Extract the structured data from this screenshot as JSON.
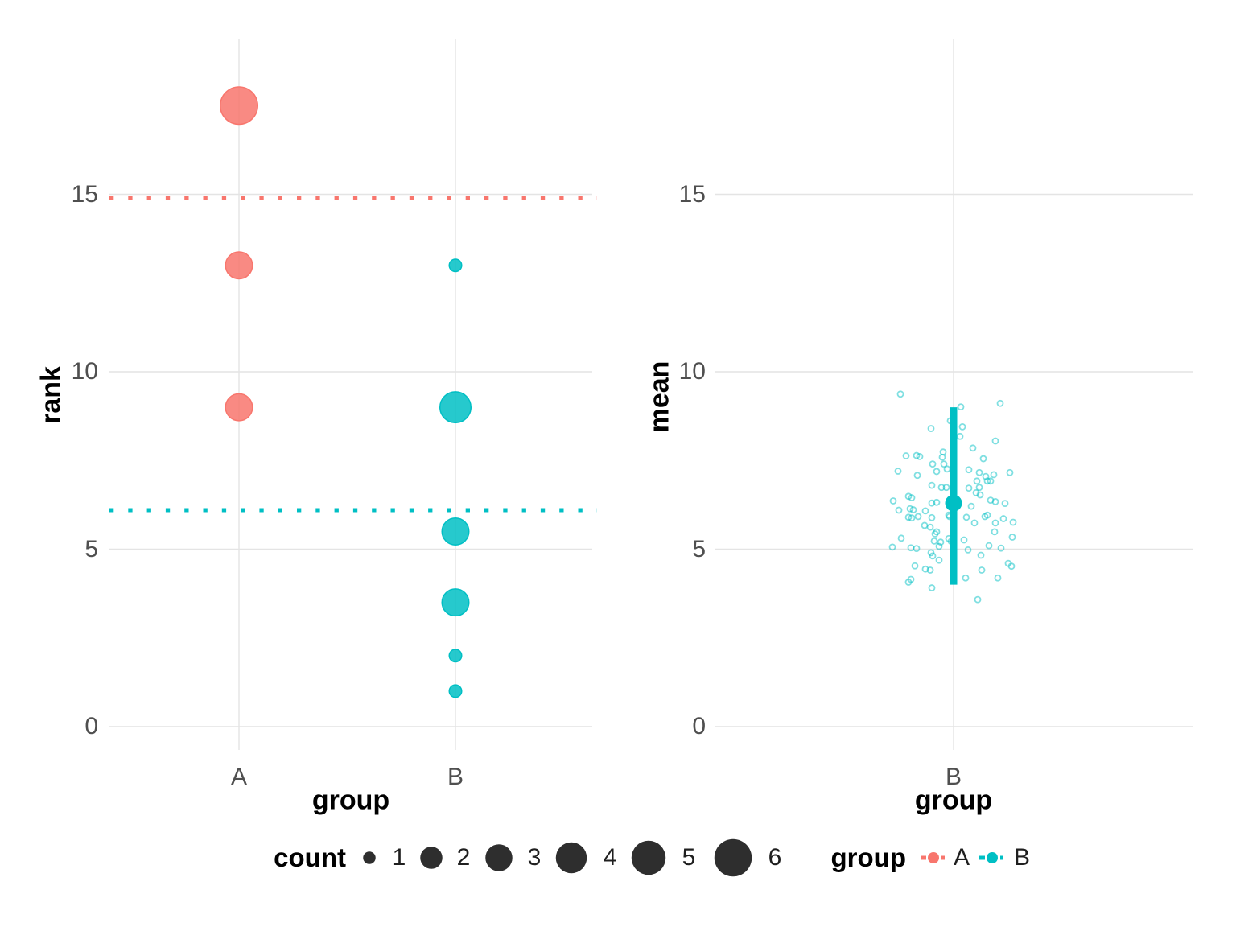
{
  "colors": {
    "group_a": "#F8766D",
    "group_b": "#00BFC4",
    "legend_key_dark": "#2E2E2E",
    "gridline": "#E4E4E4",
    "tick_text": "#4f4f4f",
    "title_text": "#000000"
  },
  "chart_data": [
    {
      "type": "bubble",
      "panel": "left",
      "xlabel": "group",
      "ylabel": "rank",
      "x_categories": [
        "A",
        "B"
      ],
      "y_ticks": [
        0,
        5,
        10,
        15
      ],
      "ylim": [
        -0.6,
        19.3
      ],
      "grid": "major-only",
      "points": [
        {
          "group": "A",
          "rank": 17.5,
          "count": 6
        },
        {
          "group": "A",
          "rank": 13,
          "count": 3
        },
        {
          "group": "A",
          "rank": 9,
          "count": 3
        },
        {
          "group": "B",
          "rank": 13,
          "count": 1
        },
        {
          "group": "B",
          "rank": 9,
          "count": 4
        },
        {
          "group": "B",
          "rank": 5.5,
          "count": 3
        },
        {
          "group": "B",
          "rank": 3.5,
          "count": 3
        },
        {
          "group": "B",
          "rank": 2,
          "count": 1
        },
        {
          "group": "B",
          "rank": 1,
          "count": 1
        }
      ],
      "hlines": [
        {
          "group": "A",
          "value": 14.9,
          "style": "dotted"
        },
        {
          "group": "B",
          "value": 6.1,
          "style": "dotted"
        }
      ]
    },
    {
      "type": "scatter-pointrange",
      "panel": "right",
      "xlabel": "group",
      "ylabel": "mean",
      "x_categories": [
        "B"
      ],
      "y_ticks": [
        0,
        5,
        10,
        15
      ],
      "ylim": [
        -0.6,
        19.3
      ],
      "grid": "major-only",
      "pointrange": {
        "group": "B",
        "mid": 6.3,
        "ymin": 4.0,
        "ymax": 9.0
      },
      "jitter_points_note": "pairs of [x-offset-px-from-category-center, mean-value]",
      "jitter_points": [
        [
          -66,
          9.37
        ],
        [
          9,
          9.01
        ],
        [
          58,
          9.11
        ],
        [
          -4,
          8.62
        ],
        [
          -28,
          8.4
        ],
        [
          8,
          8.18
        ],
        [
          52,
          8.05
        ],
        [
          11,
          8.45
        ],
        [
          37,
          7.55
        ],
        [
          24,
          7.85
        ],
        [
          -59,
          7.63
        ],
        [
          -46,
          7.64
        ],
        [
          -42,
          7.61
        ],
        [
          -14,
          7.59
        ],
        [
          -12,
          7.4
        ],
        [
          -21,
          7.19
        ],
        [
          -69,
          7.2
        ],
        [
          -8,
          7.26
        ],
        [
          19,
          7.24
        ],
        [
          32,
          7.16
        ],
        [
          -45,
          7.08
        ],
        [
          50,
          7.1
        ],
        [
          70,
          7.16
        ],
        [
          29,
          6.92
        ],
        [
          42,
          6.92
        ],
        [
          46,
          6.92
        ],
        [
          -27,
          6.8
        ],
        [
          -15,
          6.74
        ],
        [
          -9,
          6.74
        ],
        [
          19,
          6.72
        ],
        [
          32,
          6.74
        ],
        [
          28,
          6.59
        ],
        [
          33,
          6.53
        ],
        [
          -21,
          6.32
        ],
        [
          -27,
          6.3
        ],
        [
          -75,
          6.36
        ],
        [
          -56,
          6.49
        ],
        [
          -52,
          6.45
        ],
        [
          22,
          6.21
        ],
        [
          46,
          6.38
        ],
        [
          52,
          6.34
        ],
        [
          64,
          6.29
        ],
        [
          -68,
          6.1
        ],
        [
          -54,
          6.14
        ],
        [
          -50,
          6.11
        ],
        [
          -56,
          5.9
        ],
        [
          -52,
          5.88
        ],
        [
          -44,
          5.92
        ],
        [
          -35,
          6.08
        ],
        [
          -27,
          5.89
        ],
        [
          -36,
          5.67
        ],
        [
          -29,
          5.62
        ],
        [
          -21,
          5.49
        ],
        [
          -23,
          5.43
        ],
        [
          -5,
          5.92
        ],
        [
          -6,
          5.96
        ],
        [
          16,
          5.9
        ],
        [
          26,
          5.74
        ],
        [
          39,
          5.92
        ],
        [
          42,
          5.96
        ],
        [
          52,
          5.74
        ],
        [
          74,
          5.76
        ],
        [
          -76,
          5.06
        ],
        [
          -53,
          5.04
        ],
        [
          -46,
          5.02
        ],
        [
          -65,
          5.31
        ],
        [
          -24,
          5.23
        ],
        [
          -18,
          5.08
        ],
        [
          -28,
          4.9
        ],
        [
          -26,
          4.81
        ],
        [
          -18,
          4.69
        ],
        [
          -6,
          5.3
        ],
        [
          -3,
          5.22
        ],
        [
          13,
          5.26
        ],
        [
          18,
          4.98
        ],
        [
          34,
          4.83
        ],
        [
          44,
          5.1
        ],
        [
          51,
          5.49
        ],
        [
          59,
          5.03
        ],
        [
          73,
          5.34
        ],
        [
          -53,
          4.15
        ],
        [
          -56,
          4.07
        ],
        [
          -48,
          4.53
        ],
        [
          -29,
          4.41
        ],
        [
          -27,
          3.91
        ],
        [
          15,
          4.19
        ],
        [
          35,
          4.41
        ],
        [
          55,
          4.19
        ],
        [
          68,
          4.6
        ],
        [
          30,
          3.58
        ],
        [
          -13,
          7.74
        ],
        [
          40,
          7.05
        ],
        [
          -26,
          7.4
        ],
        [
          62,
          5.86
        ],
        [
          -16,
          5.2
        ],
        [
          72,
          4.52
        ],
        [
          -35,
          4.44
        ]
      ]
    }
  ],
  "legends": {
    "count": {
      "title": "count",
      "values": [
        1,
        2,
        3,
        4,
        5,
        6
      ]
    },
    "group": {
      "title": "group",
      "items": [
        {
          "label": "A",
          "color": "#F8766D"
        },
        {
          "label": "B",
          "color": "#00BFC4"
        }
      ]
    }
  }
}
